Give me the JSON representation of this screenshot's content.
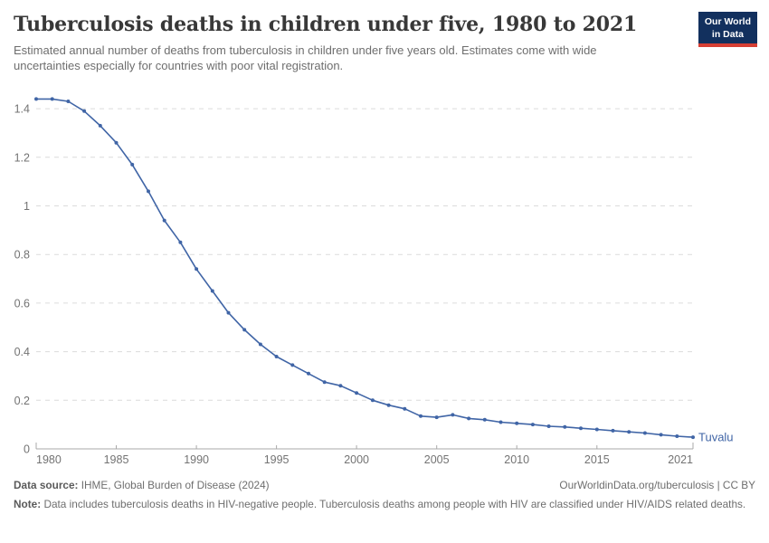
{
  "header": {
    "title": "Tuberculosis deaths in children under five, 1980 to 2021",
    "subtitle": "Estimated annual number of deaths from tuberculosis in children under five years old. Estimates come with wide uncertainties especially for countries with poor vital registration.",
    "logo": {
      "line1": "Our World",
      "line2": "in Data",
      "bg_color": "#12305e",
      "accent_color": "#d63f34"
    }
  },
  "chart_data": {
    "type": "line",
    "title": "Tuberculosis deaths in children under five, 1980 to 2021",
    "xlabel": "",
    "ylabel": "",
    "xlim": [
      1980,
      2021
    ],
    "ylim": [
      0,
      1.5
    ],
    "xticks": [
      1980,
      1985,
      1990,
      1995,
      2000,
      2005,
      2010,
      2015,
      2021
    ],
    "yticks": [
      0,
      0.2,
      0.4,
      0.6,
      0.8,
      1,
      1.2,
      1.4
    ],
    "grid": "horizontal-dashed",
    "legend_position": "end-of-line-label",
    "series": [
      {
        "name": "Tuvalu",
        "color": "#4065a6",
        "x": [
          1980,
          1981,
          1982,
          1983,
          1984,
          1985,
          1986,
          1987,
          1988,
          1989,
          1990,
          1991,
          1992,
          1993,
          1994,
          1995,
          1996,
          1997,
          1998,
          1999,
          2000,
          2001,
          2002,
          2003,
          2004,
          2005,
          2006,
          2007,
          2008,
          2009,
          2010,
          2011,
          2012,
          2013,
          2014,
          2015,
          2016,
          2017,
          2018,
          2019,
          2020,
          2021
        ],
        "values": [
          1.44,
          1.44,
          1.43,
          1.39,
          1.33,
          1.26,
          1.17,
          1.06,
          0.94,
          0.85,
          0.74,
          0.65,
          0.56,
          0.49,
          0.43,
          0.38,
          0.345,
          0.31,
          0.275,
          0.26,
          0.23,
          0.2,
          0.18,
          0.165,
          0.135,
          0.13,
          0.14,
          0.125,
          0.12,
          0.11,
          0.105,
          0.1,
          0.093,
          0.09,
          0.085,
          0.08,
          0.075,
          0.07,
          0.065,
          0.058,
          0.052,
          0.048
        ]
      }
    ]
  },
  "footer": {
    "source_label": "Data source:",
    "source_text": "IHME, Global Burden of Disease (2024)",
    "license_text": "OurWorldinData.org/tuberculosis | CC BY",
    "note_label": "Note:",
    "note_text": "Data includes tuberculosis deaths in HIV-negative people. Tuberculosis deaths among people with HIV are classified under HIV/AIDS related deaths."
  }
}
